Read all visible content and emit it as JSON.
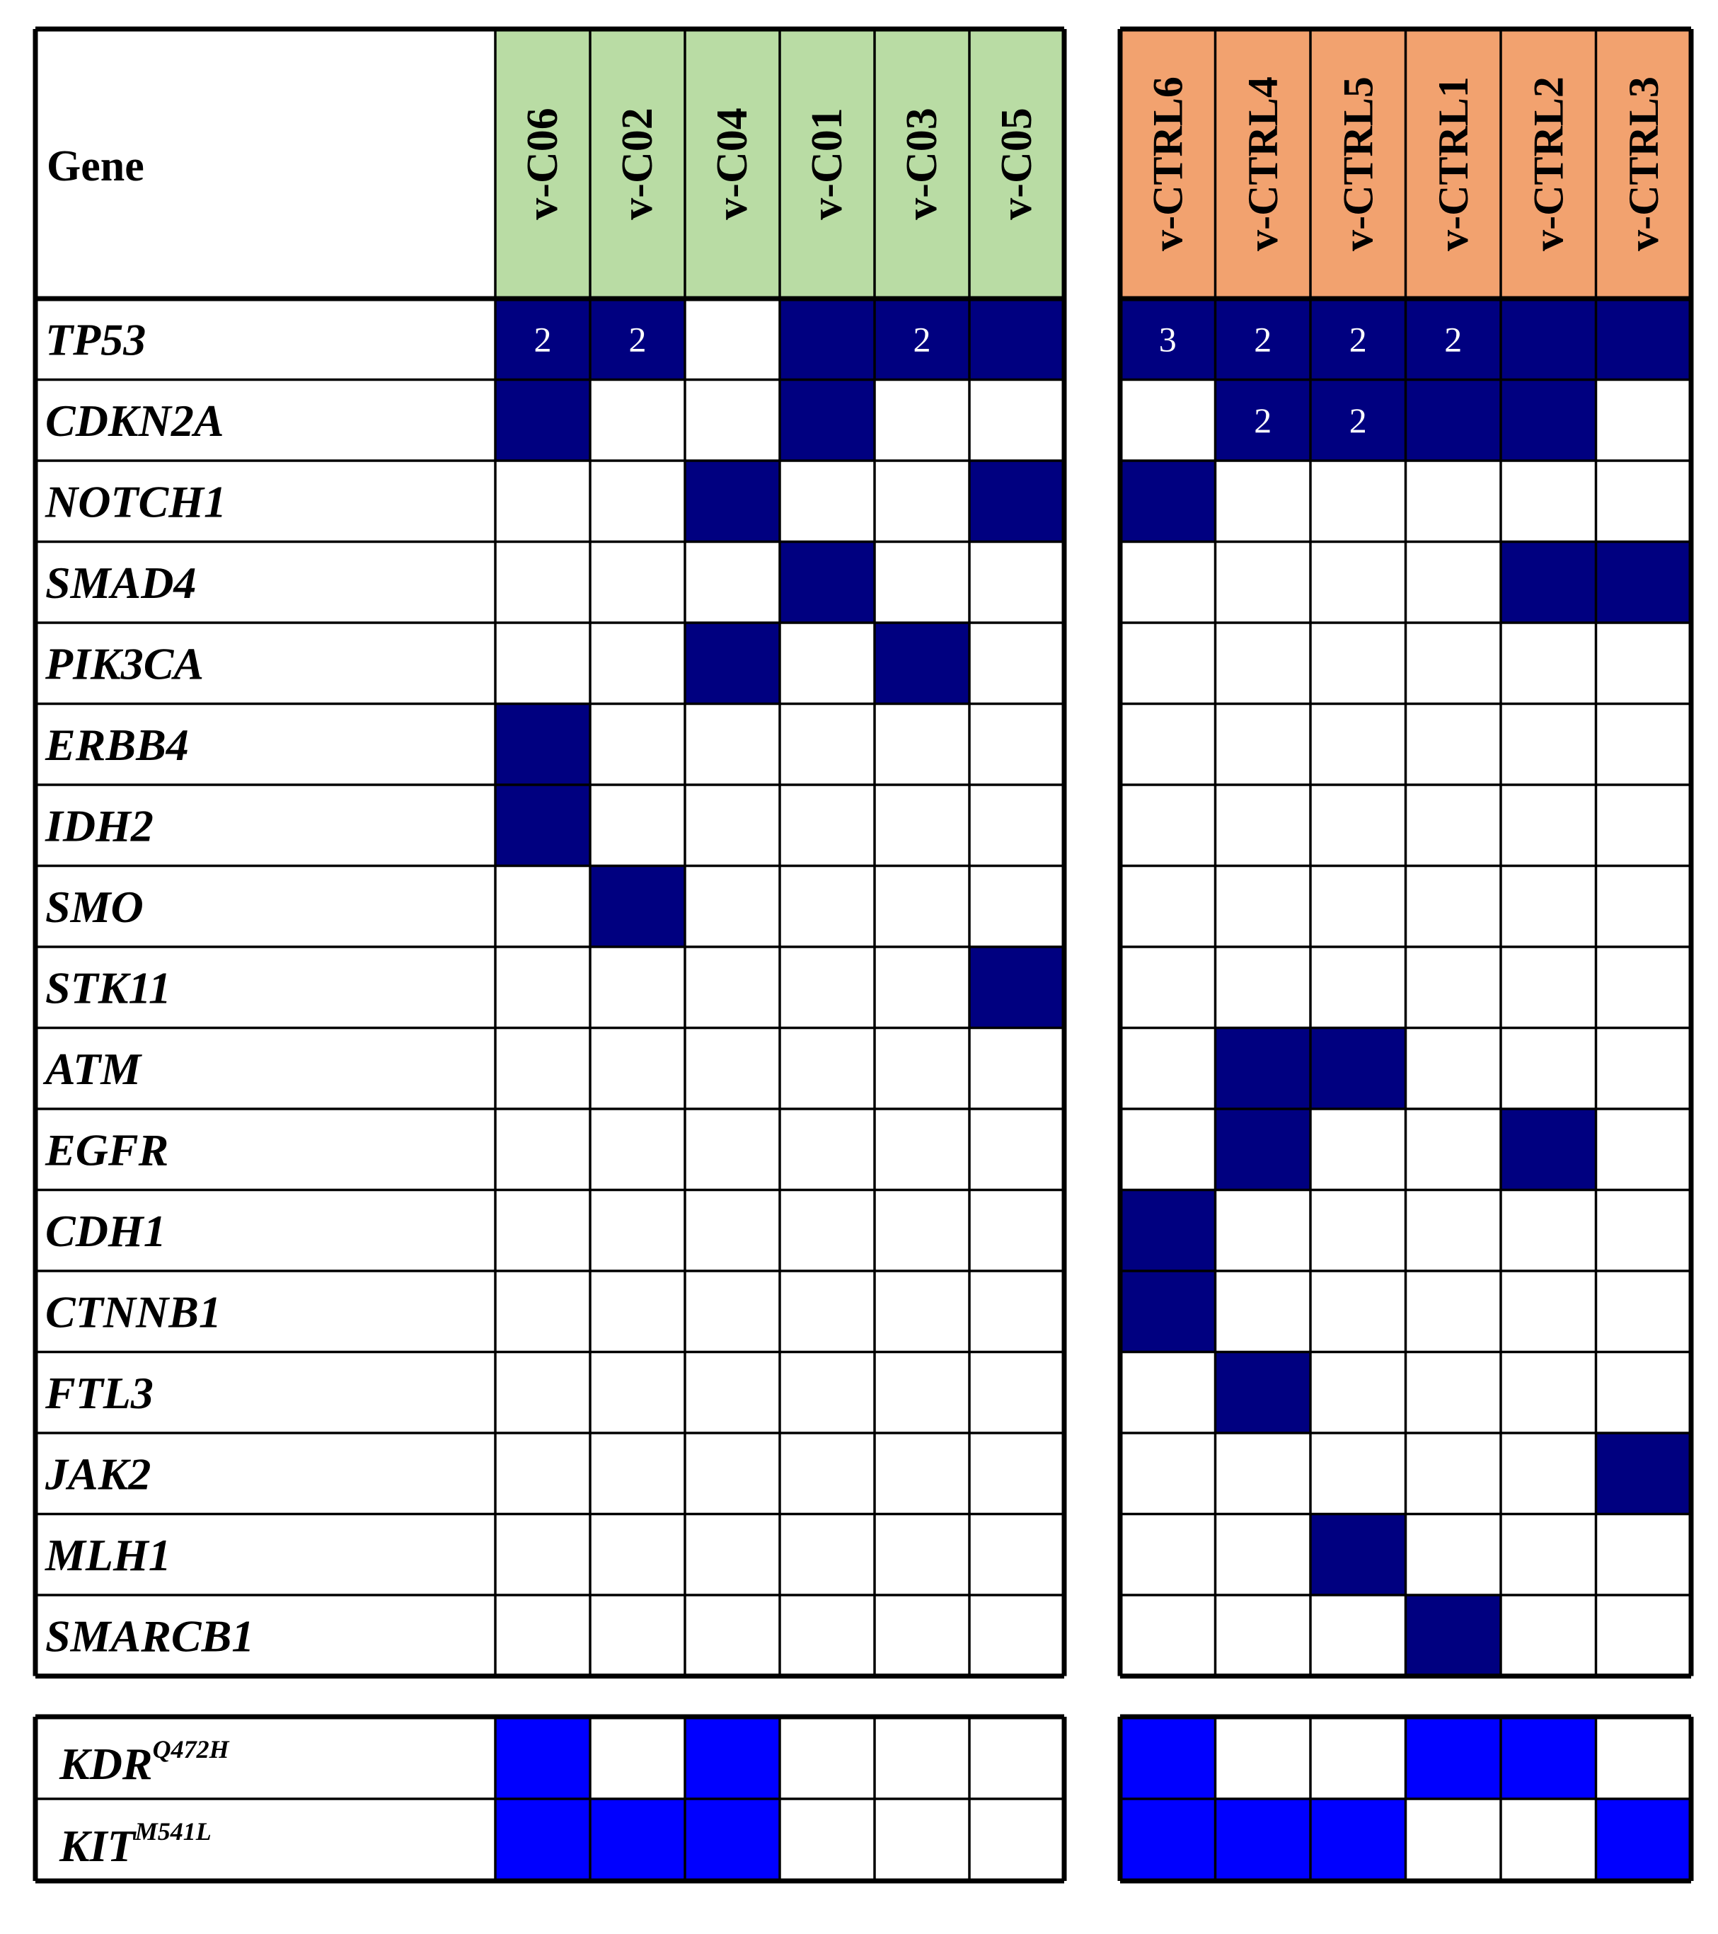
{
  "chart_data": {
    "type": "heatmap",
    "title": "",
    "row_header": "Gene",
    "groups": [
      {
        "name": "",
        "columns": [
          "v-C06",
          "v-C02",
          "v-C04",
          "v-C01",
          "v-C03",
          "v-C05"
        ],
        "color": "#b9dca4"
      },
      {
        "name": "",
        "columns": [
          "v-CTRL6",
          "v-CTRL4",
          "v-CTRL5",
          "v-CTRL1",
          "v-CTRL2",
          "v-CTRL3"
        ],
        "color": "#f2a26f"
      }
    ],
    "mutation_color": "#000080",
    "variant_color": "#0000ff",
    "genes": [
      {
        "name": "TP53",
        "values": [
          2,
          2,
          0,
          1,
          2,
          1,
          3,
          2,
          2,
          2,
          1,
          1
        ]
      },
      {
        "name": "CDKN2A",
        "values": [
          1,
          0,
          0,
          1,
          0,
          0,
          0,
          2,
          2,
          1,
          1,
          0
        ]
      },
      {
        "name": "NOTCH1",
        "values": [
          0,
          0,
          1,
          0,
          0,
          1,
          1,
          0,
          0,
          0,
          0,
          0
        ]
      },
      {
        "name": "SMAD4",
        "values": [
          0,
          0,
          0,
          1,
          0,
          0,
          0,
          0,
          0,
          0,
          1,
          1
        ]
      },
      {
        "name": "PIK3CA",
        "values": [
          0,
          0,
          1,
          0,
          1,
          0,
          0,
          0,
          0,
          0,
          0,
          0
        ]
      },
      {
        "name": "ERBB4",
        "values": [
          1,
          0,
          0,
          0,
          0,
          0,
          0,
          0,
          0,
          0,
          0,
          0
        ]
      },
      {
        "name": "IDH2",
        "values": [
          1,
          0,
          0,
          0,
          0,
          0,
          0,
          0,
          0,
          0,
          0,
          0
        ]
      },
      {
        "name": "SMO",
        "values": [
          0,
          1,
          0,
          0,
          0,
          0,
          0,
          0,
          0,
          0,
          0,
          0
        ]
      },
      {
        "name": "STK11",
        "values": [
          0,
          0,
          0,
          0,
          0,
          1,
          0,
          0,
          0,
          0,
          0,
          0
        ]
      },
      {
        "name": "ATM",
        "values": [
          0,
          0,
          0,
          0,
          0,
          0,
          0,
          1,
          1,
          0,
          0,
          0
        ]
      },
      {
        "name": "EGFR",
        "values": [
          0,
          0,
          0,
          0,
          0,
          0,
          0,
          1,
          0,
          0,
          1,
          0
        ]
      },
      {
        "name": "CDH1",
        "values": [
          0,
          0,
          0,
          0,
          0,
          0,
          1,
          0,
          0,
          0,
          0,
          0
        ]
      },
      {
        "name": "CTNNB1",
        "values": [
          0,
          0,
          0,
          0,
          0,
          0,
          1,
          0,
          0,
          0,
          0,
          0
        ]
      },
      {
        "name": "FTL3",
        "values": [
          0,
          0,
          0,
          0,
          0,
          0,
          0,
          1,
          0,
          0,
          0,
          0
        ]
      },
      {
        "name": "JAK2",
        "values": [
          0,
          0,
          0,
          0,
          0,
          0,
          0,
          0,
          0,
          0,
          0,
          1
        ]
      },
      {
        "name": "MLH1",
        "values": [
          0,
          0,
          0,
          0,
          0,
          0,
          0,
          0,
          1,
          0,
          0,
          0
        ]
      },
      {
        "name": "SMARCB1",
        "values": [
          0,
          0,
          0,
          0,
          0,
          0,
          0,
          0,
          0,
          1,
          0,
          0
        ]
      }
    ],
    "variants": [
      {
        "name": "KDR",
        "sup": "Q472H",
        "values": [
          1,
          0,
          1,
          0,
          0,
          0,
          1,
          0,
          0,
          1,
          1,
          0
        ]
      },
      {
        "name": "KIT",
        "sup": "M541L",
        "values": [
          1,
          1,
          1,
          0,
          0,
          0,
          1,
          1,
          1,
          0,
          0,
          1
        ]
      }
    ]
  }
}
